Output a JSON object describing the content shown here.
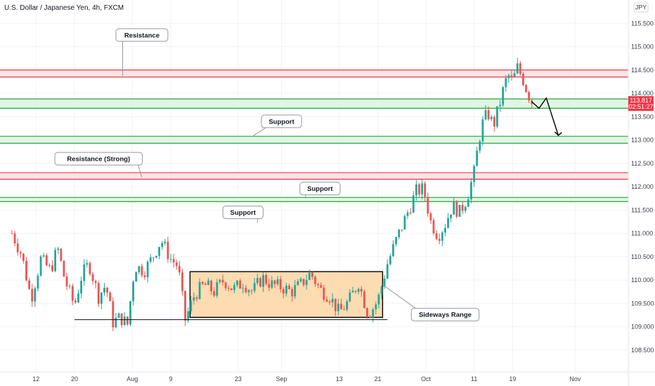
{
  "header": {
    "title": "U.S. Dollar / Japanese Yen, 4h, FXCM",
    "currency_badge": "JPY"
  },
  "price_tag": {
    "value": "113.817",
    "countdown": "02:51:27",
    "color": "#f23645"
  },
  "colors": {
    "up": "#26a69a",
    "down": "#ef5350",
    "resistance_line": "#f23645",
    "resistance_fill": "#fbe5e6",
    "support_line": "#22a33a",
    "support_fill": "#e1f5e3",
    "range_fill": "#fcdcb0"
  },
  "chart_data": {
    "type": "candlestick",
    "symbol": "USDJPY",
    "timeframe": "4h",
    "y_axis": {
      "range": [
        108.1,
        115.9
      ],
      "ticks": [
        "108.500",
        "109.000",
        "109.500",
        "110.000",
        "110.500",
        "111.000",
        "111.500",
        "112.000",
        "112.500",
        "113.000",
        "113.500",
        "114.000",
        "114.500",
        "115.000",
        "115.500"
      ]
    },
    "x_axis": {
      "ticks": [
        {
          "label": "12",
          "day": 12
        },
        {
          "label": "20",
          "day": 20
        },
        {
          "label": "Aug",
          "day": 32
        },
        {
          "label": "9",
          "day": 40
        },
        {
          "label": "23",
          "day": 54
        },
        {
          "label": "Sep",
          "day": 63
        },
        {
          "label": "13",
          "day": 75
        },
        {
          "label": "21",
          "day": 83
        },
        {
          "label": "Oct",
          "day": 93
        },
        {
          "label": "11",
          "day": 103
        },
        {
          "label": "19",
          "day": 111
        },
        {
          "label": "Nov",
          "day": 124
        }
      ]
    },
    "price_path": [
      [
        7,
        111.0
      ],
      [
        9,
        110.55
      ],
      [
        11,
        109.6
      ],
      [
        13,
        110.45
      ],
      [
        15,
        110.2
      ],
      [
        16.5,
        110.68
      ],
      [
        18,
        110.0
      ],
      [
        20,
        109.45
      ],
      [
        21.5,
        110.1
      ],
      [
        23,
        110.35
      ],
      [
        25,
        109.65
      ],
      [
        26.5,
        109.9
      ],
      [
        28,
        109.1
      ],
      [
        29.5,
        109.2
      ],
      [
        31,
        109.05
      ],
      [
        32.5,
        110.3
      ],
      [
        34.5,
        110.2
      ],
      [
        36,
        110.45
      ],
      [
        38,
        110.85
      ],
      [
        40,
        110.45
      ],
      [
        41.5,
        110.3
      ],
      [
        43,
        109.15
      ],
      [
        45,
        109.7
      ],
      [
        47,
        109.9
      ],
      [
        49,
        109.75
      ],
      [
        51,
        110.0
      ],
      [
        53,
        109.8
      ],
      [
        55,
        109.95
      ],
      [
        57,
        109.75
      ],
      [
        59,
        110.05
      ],
      [
        61,
        109.9
      ],
      [
        63,
        109.85
      ],
      [
        65,
        109.75
      ],
      [
        67,
        109.9
      ],
      [
        69,
        110.15
      ],
      [
        71,
        109.8
      ],
      [
        73,
        109.65
      ],
      [
        75,
        109.3
      ],
      [
        77,
        109.55
      ],
      [
        79,
        109.95
      ],
      [
        81,
        109.25
      ],
      [
        83,
        109.55
      ],
      [
        85,
        110.35
      ],
      [
        87,
        110.9
      ],
      [
        89,
        111.4
      ],
      [
        91,
        111.9
      ],
      [
        92.5,
        111.95
      ],
      [
        94,
        111.25
      ],
      [
        95.5,
        110.95
      ],
      [
        97,
        111.2
      ],
      [
        98.5,
        111.6
      ],
      [
        100,
        111.45
      ],
      [
        101.5,
        111.75
      ],
      [
        103,
        112.3
      ],
      [
        104,
        113.0
      ],
      [
        105,
        113.45
      ],
      [
        106,
        113.55
      ],
      [
        107,
        113.3
      ],
      [
        108,
        113.65
      ],
      [
        109,
        114.05
      ],
      [
        110,
        114.4
      ],
      [
        111,
        114.25
      ],
      [
        112,
        114.55
      ],
      [
        113,
        114.35
      ],
      [
        114,
        114.05
      ],
      [
        115,
        113.82
      ]
    ],
    "zones": [
      {
        "kind": "resistance",
        "low": 114.35,
        "high": 114.5
      },
      {
        "kind": "support",
        "low": 113.68,
        "high": 113.88
      },
      {
        "kind": "support",
        "low": 112.93,
        "high": 113.08
      },
      {
        "kind": "resistance",
        "low": 112.16,
        "high": 112.3
      },
      {
        "kind": "support",
        "low": 111.68,
        "high": 111.77
      }
    ],
    "sideways_range": {
      "day_start": 44,
      "day_end": 84,
      "low": 109.2,
      "high": 110.18
    },
    "baseline": {
      "day_start": 20,
      "day_end": 85,
      "price": 109.15
    },
    "projection": [
      [
        115,
        113.82
      ],
      [
        116.5,
        113.68
      ],
      [
        118,
        113.9
      ],
      [
        120.5,
        113.1
      ]
    ],
    "annotations": [
      {
        "text": "Resistance",
        "anchor_day": 30,
        "anchor_price": 114.38,
        "box_day": 34,
        "box_price": 115.25
      },
      {
        "text": "Support",
        "anchor_day": 57,
        "anchor_price": 113.08,
        "box_day": 63,
        "box_price": 113.4
      },
      {
        "text": "Resistance (Strong)",
        "anchor_day": 34,
        "anchor_price": 112.2,
        "box_day": 25,
        "box_price": 112.6
      },
      {
        "text": "Support",
        "anchor_day": 68,
        "anchor_price": 111.75,
        "box_day": 71,
        "box_price": 111.96
      },
      {
        "text": "Support",
        "anchor_day": 58,
        "anchor_price": 111.22,
        "box_day": 55,
        "box_price": 111.45
      },
      {
        "text": "Sideways Range",
        "anchor_day": 84,
        "anchor_price": 109.9,
        "box_day": 97,
        "box_price": 109.26
      }
    ]
  }
}
